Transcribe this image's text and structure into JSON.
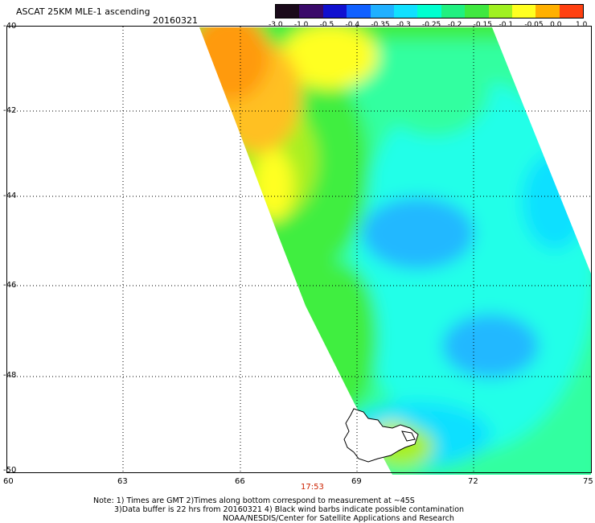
{
  "header": {
    "title": "ASCAT 25KM MLE-1 ascending",
    "date": "20160321"
  },
  "colorbar": {
    "labels": [
      "-3.0",
      "-1.0",
      "-0.5",
      "-0.4",
      "-0.35",
      "-0.3",
      "-0.25",
      "-0.2",
      "-0.15",
      "-0.1",
      "-0.05",
      "0.0",
      "1.0"
    ],
    "colors": [
      "#1a0a1a",
      "#3a0a6a",
      "#1010d0",
      "#1060ff",
      "#20b0ff",
      "#10e0ff",
      "#00ffd0",
      "#20f080",
      "#40e840",
      "#a0f020",
      "#ffff20",
      "#ffb000",
      "#ff4010"
    ]
  },
  "map": {
    "lat_labels": [
      "-40",
      "-42",
      "-44",
      "-46",
      "-48",
      "-50"
    ],
    "lon_labels": [
      "60",
      "63",
      "66",
      "69",
      "72",
      "75"
    ],
    "time_label": "17:53",
    "colors": {
      "orange": "#ff9a10",
      "light_orange": "#ffc020",
      "yellow": "#ffff20",
      "yellow_green": "#a8f020",
      "green": "#40ee40",
      "aqua_green": "#30ffa0",
      "cyan": "#20ffe8",
      "light_blue": "#10e0ff",
      "blue": "#20b8ff"
    }
  },
  "footer": {
    "line1": "Note: 1) Times are GMT 2)Times along bottom correspond to measurement at ~45S",
    "line2": "3)Data buffer is 22 hrs from 20160321 4) Black wind barbs indicate possible contamination",
    "line3": "NOAA/NESDIS/Center for Satellite Applications and Research"
  }
}
